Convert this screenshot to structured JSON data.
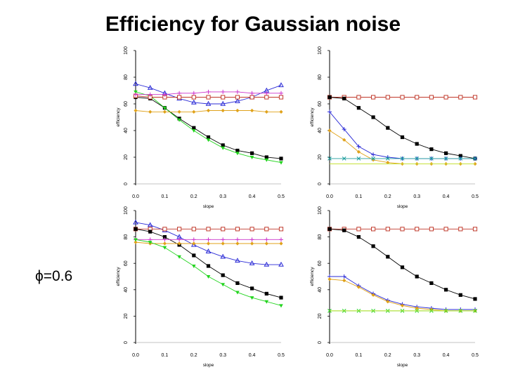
{
  "title": "Efficiency for Gaussian noise",
  "phi_label": "ϕ=0.6",
  "colors": {
    "black": "#000000",
    "red": "#c0392b",
    "blue": "#2a2ad6",
    "green": "#22d41e",
    "orange": "#e0a21a",
    "magenta": "#cc33cc",
    "teal": "#1f9e9e",
    "yellowgreen": "#c6e23a"
  },
  "chart_data": [
    {
      "type": "line",
      "position": "top-left",
      "xlabel": "slope",
      "ylabel": "efficiency",
      "xlim": [
        0,
        0.5
      ],
      "ylim": [
        0,
        100
      ],
      "xticks": [
        "0.0",
        "0.1",
        "0.2",
        "0.3",
        "0.4",
        "0.5"
      ],
      "yticks": [
        "0",
        "20",
        "40",
        "60",
        "80",
        "100"
      ],
      "x": [
        0.0,
        0.05,
        0.1,
        0.15,
        0.2,
        0.25,
        0.3,
        0.35,
        0.4,
        0.45,
        0.5
      ],
      "series": [
        {
          "name": "black",
          "color": "black",
          "marker": "square",
          "values": [
            65,
            64,
            57,
            49,
            42,
            35,
            29,
            25,
            23,
            20,
            19
          ]
        },
        {
          "name": "green",
          "color": "green",
          "marker": "triangle-down",
          "values": [
            69,
            66,
            57,
            48,
            40,
            33,
            27,
            23,
            20,
            18,
            16
          ]
        },
        {
          "name": "blue",
          "color": "blue",
          "marker": "triangle",
          "values": [
            75,
            72,
            68,
            64,
            61,
            60,
            60,
            62,
            65,
            70,
            74
          ]
        },
        {
          "name": "red",
          "color": "red",
          "marker": "open-square",
          "values": [
            66,
            65,
            65,
            65,
            65,
            65,
            65,
            65,
            65,
            65,
            65
          ]
        },
        {
          "name": "magenta",
          "color": "magenta",
          "marker": "plus",
          "values": [
            67,
            67,
            67,
            68,
            68,
            69,
            69,
            69,
            68,
            68,
            68
          ]
        },
        {
          "name": "orange",
          "color": "orange",
          "marker": "diamond",
          "values": [
            55,
            54,
            54,
            54,
            54,
            55,
            55,
            55,
            55,
            54,
            54
          ]
        }
      ]
    },
    {
      "type": "line",
      "position": "top-right",
      "xlabel": "slope",
      "ylabel": "efficiency",
      "xlim": [
        0,
        0.5
      ],
      "ylim": [
        0,
        100
      ],
      "xticks": [
        "0.0",
        "0.1",
        "0.2",
        "0.3",
        "0.4",
        "0.5"
      ],
      "yticks": [
        "0",
        "20",
        "40",
        "60",
        "80",
        "100"
      ],
      "x": [
        0.0,
        0.05,
        0.1,
        0.15,
        0.2,
        0.25,
        0.3,
        0.35,
        0.4,
        0.45,
        0.5
      ],
      "series": [
        {
          "name": "red",
          "color": "red",
          "marker": "open-square",
          "values": [
            65,
            65,
            65,
            65,
            65,
            65,
            65,
            65,
            65,
            65,
            65
          ]
        },
        {
          "name": "black",
          "color": "black",
          "marker": "square",
          "values": [
            65,
            64,
            57,
            50,
            42,
            35,
            30,
            26,
            23,
            21,
            19
          ]
        },
        {
          "name": "blue",
          "color": "blue",
          "marker": "plus",
          "values": [
            54,
            41,
            28,
            22,
            20,
            19,
            19,
            19,
            19,
            19,
            19
          ]
        },
        {
          "name": "orange",
          "color": "orange",
          "marker": "diamond",
          "values": [
            40,
            33,
            24,
            18,
            16,
            15,
            15,
            15,
            15,
            15,
            15
          ]
        },
        {
          "name": "teal",
          "color": "teal",
          "marker": "cross",
          "values": [
            19,
            19,
            19,
            19,
            19,
            19,
            19,
            19,
            19,
            19,
            19
          ]
        },
        {
          "name": "yellowgreen",
          "color": "yellowgreen",
          "marker": "none",
          "values": [
            15,
            15,
            15,
            15,
            15,
            15,
            15,
            15,
            15,
            15,
            15
          ]
        }
      ]
    },
    {
      "type": "line",
      "position": "bottom-left",
      "xlabel": "slope",
      "ylabel": "efficiency",
      "xlim": [
        0,
        0.5
      ],
      "ylim": [
        0,
        100
      ],
      "xticks": [
        "0.0",
        "0.1",
        "0.2",
        "0.3",
        "0.4",
        "0.5"
      ],
      "yticks": [
        "0",
        "20",
        "40",
        "60",
        "80",
        "100"
      ],
      "x": [
        0.0,
        0.05,
        0.1,
        0.15,
        0.2,
        0.25,
        0.3,
        0.35,
        0.4,
        0.45,
        0.5
      ],
      "series": [
        {
          "name": "blue",
          "color": "blue",
          "marker": "triangle",
          "values": [
            91,
            89,
            85,
            80,
            74,
            69,
            65,
            62,
            60,
            59,
            59
          ]
        },
        {
          "name": "red",
          "color": "red",
          "marker": "open-square",
          "values": [
            86,
            86,
            86,
            86,
            86,
            86,
            86,
            86,
            86,
            86,
            86
          ]
        },
        {
          "name": "black",
          "color": "black",
          "marker": "square",
          "values": [
            86,
            84,
            80,
            74,
            66,
            58,
            51,
            45,
            41,
            37,
            34
          ]
        },
        {
          "name": "magenta",
          "color": "magenta",
          "marker": "plus",
          "values": [
            78,
            78,
            78,
            78,
            78,
            78,
            78,
            78,
            78,
            78,
            78
          ]
        },
        {
          "name": "orange",
          "color": "orange",
          "marker": "diamond",
          "values": [
            76,
            75,
            75,
            75,
            75,
            75,
            75,
            75,
            75,
            75,
            75
          ]
        },
        {
          "name": "green",
          "color": "green",
          "marker": "triangle-down",
          "values": [
            78,
            76,
            72,
            65,
            58,
            50,
            44,
            38,
            34,
            31,
            28
          ]
        }
      ]
    },
    {
      "type": "line",
      "position": "bottom-right",
      "xlabel": "slope",
      "ylabel": "efficiency",
      "xlim": [
        0,
        0.5
      ],
      "ylim": [
        0,
        100
      ],
      "xticks": [
        "0.0",
        "0.1",
        "0.2",
        "0.3",
        "0.4",
        "0.5"
      ],
      "yticks": [
        "0",
        "20",
        "40",
        "60",
        "80",
        "100"
      ],
      "x": [
        0.0,
        0.05,
        0.1,
        0.15,
        0.2,
        0.25,
        0.3,
        0.35,
        0.4,
        0.45,
        0.5
      ],
      "series": [
        {
          "name": "red",
          "color": "red",
          "marker": "open-square",
          "values": [
            86,
            86,
            86,
            86,
            86,
            86,
            86,
            86,
            86,
            86,
            86
          ]
        },
        {
          "name": "black",
          "color": "black",
          "marker": "square",
          "values": [
            86,
            85,
            80,
            73,
            65,
            57,
            50,
            45,
            40,
            36,
            33
          ]
        },
        {
          "name": "blue",
          "color": "blue",
          "marker": "plus",
          "values": [
            50,
            50,
            43,
            37,
            32,
            29,
            27,
            26,
            25,
            25,
            25
          ]
        },
        {
          "name": "orange",
          "color": "orange",
          "marker": "diamond",
          "values": [
            48,
            47,
            42,
            36,
            31,
            28,
            26,
            25,
            24,
            24,
            24
          ]
        },
        {
          "name": "green",
          "color": "green",
          "marker": "cross",
          "values": [
            24,
            24,
            24,
            24,
            24,
            24,
            24,
            24,
            24,
            24,
            24
          ]
        },
        {
          "name": "yellowgreen",
          "color": "yellowgreen",
          "marker": "none",
          "values": [
            24,
            24,
            24,
            24,
            24,
            24,
            24,
            24,
            24,
            24,
            24
          ]
        }
      ]
    }
  ]
}
